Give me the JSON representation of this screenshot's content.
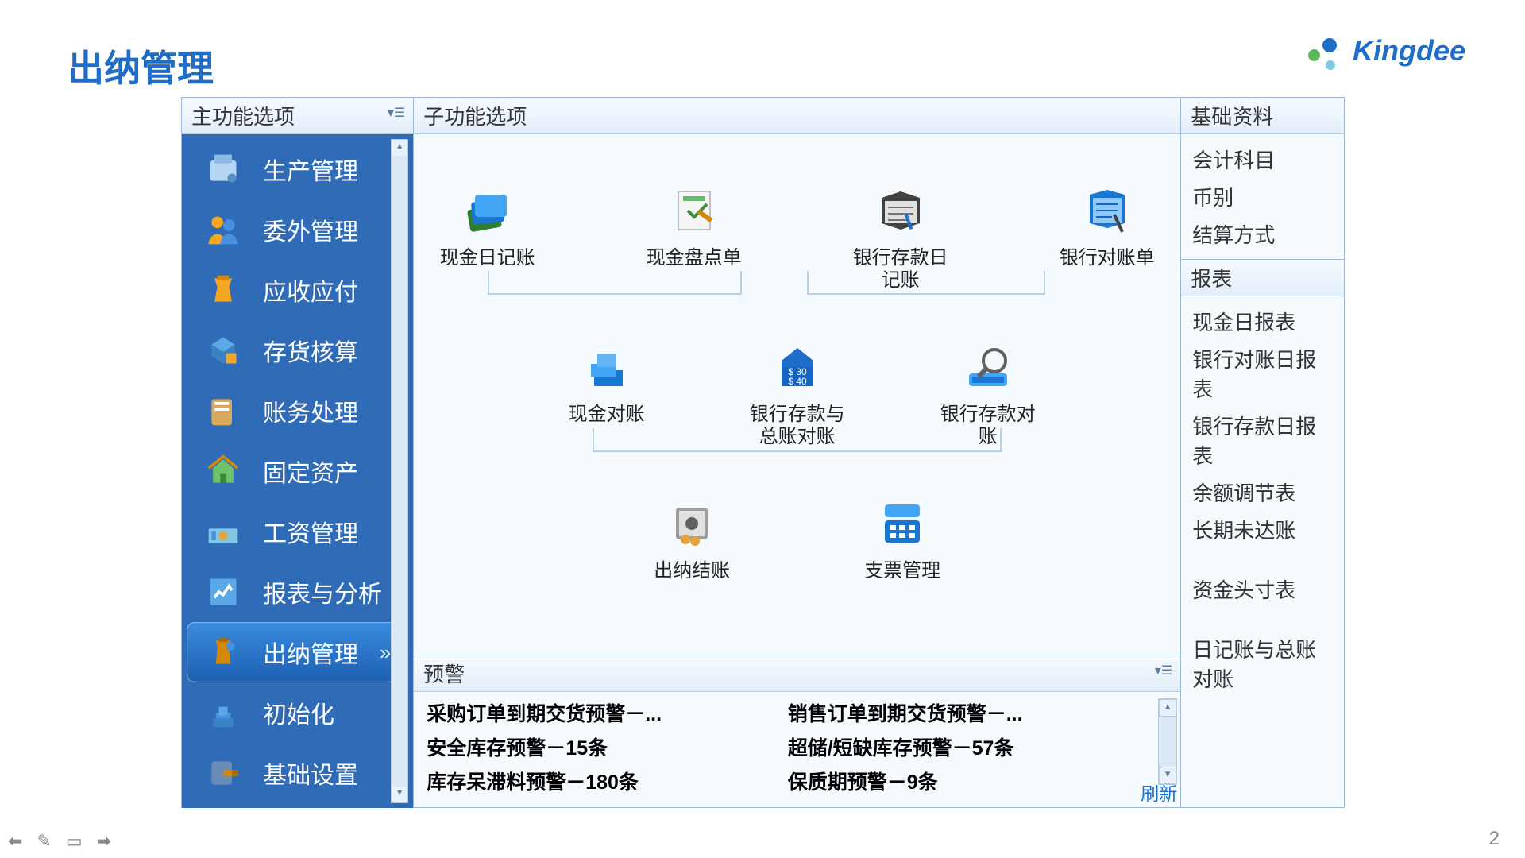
{
  "page_title": "出纳管理",
  "brand": "Kingdee",
  "page_number": "2",
  "colors": {
    "brand_blue": "#1e6dc8",
    "sidebar_bg": "#2f6bb7",
    "sidebar_active": "#3a8ce0",
    "panel_border": "#9db8d8",
    "connector": "#b5d0e8"
  },
  "sidebar": {
    "header": "主功能选项",
    "items": [
      {
        "label": "生产管理",
        "active": false
      },
      {
        "label": "委外管理",
        "active": false
      },
      {
        "label": "应收应付",
        "active": false
      },
      {
        "label": "存货核算",
        "active": false
      },
      {
        "label": "账务处理",
        "active": false
      },
      {
        "label": "固定资产",
        "active": false
      },
      {
        "label": "工资管理",
        "active": false
      },
      {
        "label": "报表与分析",
        "active": false
      },
      {
        "label": "出纳管理",
        "active": true
      },
      {
        "label": "初始化",
        "active": false
      },
      {
        "label": "基础设置",
        "active": false
      }
    ]
  },
  "sub_functions": {
    "header": "子功能选项",
    "row1": [
      {
        "label": "现金日记账"
      },
      {
        "label": "现金盘点单"
      },
      {
        "label": "银行存款日\n记账"
      },
      {
        "label": "银行对账单"
      }
    ],
    "row2": [
      {
        "label": "现金对账"
      },
      {
        "label": "银行存款与\n总账对账"
      },
      {
        "label": "银行存款对\n账"
      }
    ],
    "row3": [
      {
        "label": "出纳结账"
      },
      {
        "label": "支票管理"
      }
    ]
  },
  "alerts": {
    "header": "预警",
    "left": [
      "采购订单到期交货预警－...",
      "安全库存预警－15条",
      "库存呆滞料预警－180条"
    ],
    "right": [
      "销售订单到期交货预警－...",
      "超储/短缺库存预警－57条",
      "保质期预警－9条"
    ],
    "refresh": "刷新"
  },
  "basic_data": {
    "header": "基础资料",
    "items": [
      "会计科目",
      "币别",
      "结算方式"
    ]
  },
  "reports": {
    "header": "报表",
    "items": [
      "现金日报表",
      "银行对账日报表",
      "银行存款日报表",
      "余额调节表",
      "长期未达账",
      "",
      "资金头寸表",
      "",
      "日记账与总账对账"
    ]
  }
}
